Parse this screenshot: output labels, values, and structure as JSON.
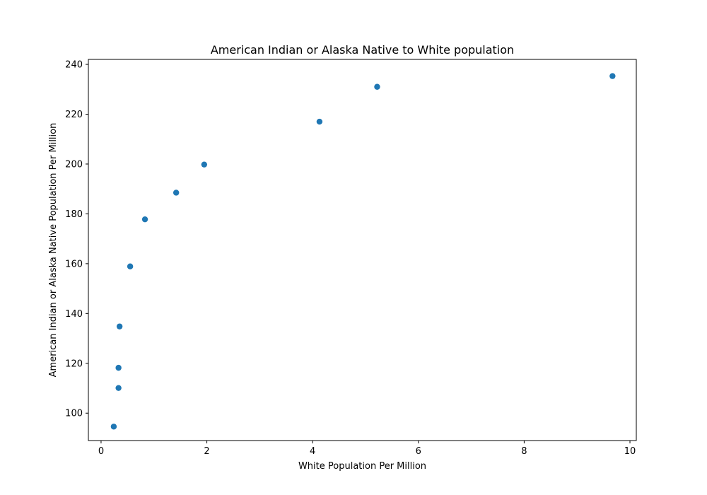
{
  "chart_data": {
    "type": "scatter",
    "title": "American Indian or Alaska Native to White population",
    "xlabel": "White Population Per Million",
    "ylabel": "American Indian or Alaska Native Population Per Million",
    "xlim": [
      -0.24,
      10.12
    ],
    "ylim": [
      89.0,
      242.0
    ],
    "xticks": [
      0,
      2,
      4,
      6,
      8,
      10
    ],
    "yticks": [
      100,
      120,
      140,
      160,
      180,
      200,
      220,
      240
    ],
    "grid": false,
    "legend": "none",
    "marker_color": "#1f77b4",
    "points": [
      {
        "x": 0.24,
        "y": 94.6
      },
      {
        "x": 0.33,
        "y": 110.1
      },
      {
        "x": 0.33,
        "y": 118.2
      },
      {
        "x": 0.35,
        "y": 134.8
      },
      {
        "x": 0.55,
        "y": 158.9
      },
      {
        "x": 0.83,
        "y": 177.8
      },
      {
        "x": 1.42,
        "y": 188.5
      },
      {
        "x": 1.95,
        "y": 199.8
      },
      {
        "x": 4.13,
        "y": 217.0
      },
      {
        "x": 5.22,
        "y": 231.0
      },
      {
        "x": 9.67,
        "y": 235.3
      }
    ]
  }
}
